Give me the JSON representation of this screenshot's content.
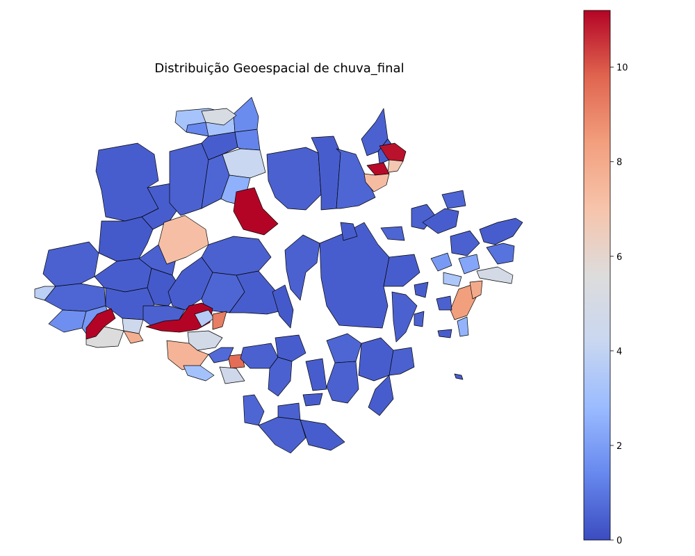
{
  "title": "Distribuição Geoespacial de chuva_final",
  "colormap": {
    "name": "coolwarm",
    "stops": [
      "#3b4cc0",
      "#6788ee",
      "#9abbff",
      "#c9d7f0",
      "#dddcdc",
      "#f7c4ab",
      "#f29f7e",
      "#e0654f",
      "#b40426"
    ]
  },
  "colorbar": {
    "range": [
      0,
      11.2
    ],
    "ticks": [
      0,
      2,
      4,
      6,
      8,
      10
    ],
    "tick_labels": [
      "0",
      "2",
      "4",
      "6",
      "8",
      "10"
    ]
  },
  "map": {
    "variable": "chuva_final",
    "regions": [
      {
        "id": "r1",
        "value": 0.4
      },
      {
        "id": "r2",
        "value": 0.3
      },
      {
        "id": "r3",
        "value": 0.5
      },
      {
        "id": "r4",
        "value": 0.4
      },
      {
        "id": "r5",
        "value": 0.6
      },
      {
        "id": "r6",
        "value": 0.4
      },
      {
        "id": "r7",
        "value": 0.5
      },
      {
        "id": "r8",
        "value": 0.3
      },
      {
        "id": "r9",
        "value": 0.4
      },
      {
        "id": "r10",
        "value": 1.6
      },
      {
        "id": "r11",
        "value": 3.8
      },
      {
        "id": "r12",
        "value": 5.6
      },
      {
        "id": "r13",
        "value": 1.8
      },
      {
        "id": "r14",
        "value": 4.5
      },
      {
        "id": "r15",
        "value": 3.2
      },
      {
        "id": "r16",
        "value": 0.5
      },
      {
        "id": "r17",
        "value": 0.4
      },
      {
        "id": "r18",
        "value": 0.6
      },
      {
        "id": "r19",
        "value": 1.3
      },
      {
        "id": "r20",
        "value": 11.2
      },
      {
        "id": "r21",
        "value": 7.2
      },
      {
        "id": "r22",
        "value": 11.0
      },
      {
        "id": "r23",
        "value": 0.5
      },
      {
        "id": "r24",
        "value": 0.4
      },
      {
        "id": "r25",
        "value": 0.6
      },
      {
        "id": "r26",
        "value": 0.5
      },
      {
        "id": "r27",
        "value": 0.4
      },
      {
        "id": "r28",
        "value": 0.5
      },
      {
        "id": "r29",
        "value": 0.4
      },
      {
        "id": "r30",
        "value": 0.6
      },
      {
        "id": "r31",
        "value": 0.4
      },
      {
        "id": "r32",
        "value": 0.5
      },
      {
        "id": "r33",
        "value": 0.3
      },
      {
        "id": "r34",
        "value": 0.5
      },
      {
        "id": "r35",
        "value": 0.4
      },
      {
        "id": "r36",
        "value": 4.2
      },
      {
        "id": "r37",
        "value": 1.5
      },
      {
        "id": "r38",
        "value": 11.2
      },
      {
        "id": "r39",
        "value": 5.2
      },
      {
        "id": "r40",
        "value": 11.1
      },
      {
        "id": "r41",
        "value": 9.2
      },
      {
        "id": "r42",
        "value": 7.3
      },
      {
        "id": "r43",
        "value": 3.6
      },
      {
        "id": "r44",
        "value": 4.8
      },
      {
        "id": "r45",
        "value": 9.6
      },
      {
        "id": "r46",
        "value": 6.8
      },
      {
        "id": "r47",
        "value": 1.2
      },
      {
        "id": "r48",
        "value": 0.4
      },
      {
        "id": "r49",
        "value": 0.5
      },
      {
        "id": "r50",
        "value": 0.4
      },
      {
        "id": "r51",
        "value": 0.6
      },
      {
        "id": "r52",
        "value": 0.5
      },
      {
        "id": "r53",
        "value": 0.4
      },
      {
        "id": "r54",
        "value": 0.5
      },
      {
        "id": "r55",
        "value": 0.4
      },
      {
        "id": "r56",
        "value": 0.6
      },
      {
        "id": "r57",
        "value": 0.5
      },
      {
        "id": "r58",
        "value": 0.4
      },
      {
        "id": "r59",
        "value": 0.5
      },
      {
        "id": "r60",
        "value": 0.4
      },
      {
        "id": "r61",
        "value": 0.6
      },
      {
        "id": "r62",
        "value": 0.5
      },
      {
        "id": "r63",
        "value": 0.4
      },
      {
        "id": "r64",
        "value": 0.5
      },
      {
        "id": "r65",
        "value": 0.4
      },
      {
        "id": "r66",
        "value": 1.4
      },
      {
        "id": "r67",
        "value": 2.5
      },
      {
        "id": "r68",
        "value": 0.9
      },
      {
        "id": "r69",
        "value": 3.4
      },
      {
        "id": "r70",
        "value": 1.9
      },
      {
        "id": "r71",
        "value": 8.4
      },
      {
        "id": "r72",
        "value": 7.6
      },
      {
        "id": "r73",
        "value": 3.1
      },
      {
        "id": "r74",
        "value": 4.6
      },
      {
        "id": "r75",
        "value": 0.7
      },
      {
        "id": "r76",
        "value": 0.5
      },
      {
        "id": "r77",
        "value": 0.4
      },
      {
        "id": "r78",
        "value": 0.6
      },
      {
        "id": "r79",
        "value": 0.5
      },
      {
        "id": "r80",
        "value": 0.4
      },
      {
        "id": "r81",
        "value": 2.2
      },
      {
        "id": "r82",
        "value": 4.9
      },
      {
        "id": "r83",
        "value": 7.8
      }
    ]
  }
}
